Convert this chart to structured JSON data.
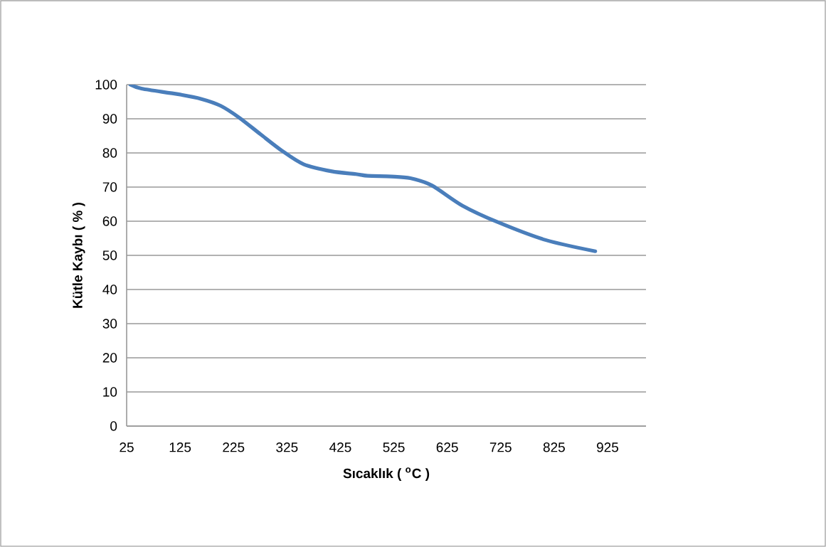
{
  "chart_data": {
    "type": "line",
    "xlabel": "Sıcaklık ( $^{o}$C )",
    "ylabel": "Kütle Kaybı ( % )",
    "x": [
      32,
      54,
      121,
      165,
      201,
      236,
      276,
      316,
      356,
      409,
      454,
      476,
      520,
      556,
      596,
      653,
      720,
      809,
      902
    ],
    "series": [
      {
        "color": "#4a7ebb",
        "values": [
          100,
          98.8,
          97.2,
          95.8,
          93.8,
          90.3,
          85.4,
          80.6,
          76.7,
          74.6,
          73.8,
          73.3,
          73.1,
          72.6,
          70.5,
          64.6,
          59.7,
          54.5,
          51.2
        ]
      }
    ],
    "xlim": [
      25,
      997
    ],
    "xticks": [
      25,
      125,
      225,
      325,
      425,
      525,
      625,
      725,
      825,
      925
    ],
    "ylim": [
      0,
      100
    ],
    "yticks": [
      0,
      10,
      20,
      30,
      40,
      50,
      60,
      70,
      80,
      90,
      100
    ],
    "grid": "y",
    "legend": false,
    "marker": "none",
    "line_style": "solid"
  }
}
